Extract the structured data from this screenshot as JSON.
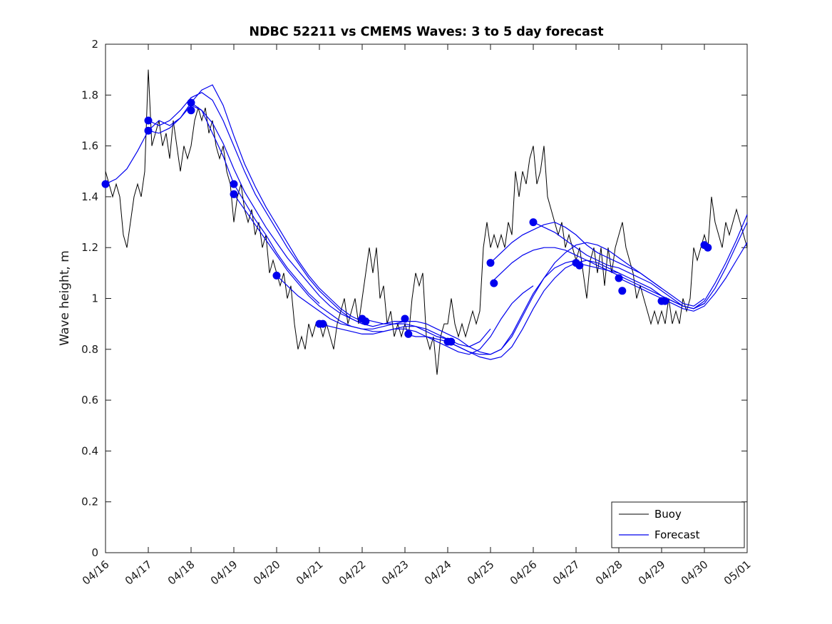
{
  "chart_data": {
    "type": "line",
    "title": "NDBC 52211 vs CMEMS Waves: 3 to 5 day forecast",
    "xlabel": "",
    "ylabel": "Wave height, m",
    "xlim": [
      0,
      15
    ],
    "ylim": [
      0,
      2
    ],
    "grid": false,
    "yticks": [
      0,
      0.2,
      0.4,
      0.6,
      0.8,
      1,
      1.2,
      1.4,
      1.6,
      1.8,
      2
    ],
    "ytick_labels": [
      "0",
      "0.2",
      "0.4",
      "0.6",
      "0.8",
      "1",
      "1.2",
      "1.4",
      "1.6",
      "1.8",
      "2"
    ],
    "xtick_labels": [
      "04/16",
      "04/17",
      "04/18",
      "04/19",
      "04/20",
      "04/21",
      "04/22",
      "04/23",
      "04/24",
      "04/25",
      "04/26",
      "04/27",
      "04/28",
      "04/29",
      "04/30",
      "05/01"
    ],
    "series_colors": {
      "buoy": "#000000",
      "forecast": "#0000ee"
    },
    "legend": {
      "position": "bottom-right",
      "entries": [
        "Buoy",
        "Forecast"
      ]
    },
    "buoy": {
      "name": "Buoy",
      "x0": 0,
      "dx": 0.0833333,
      "y": [
        1.5,
        1.45,
        1.4,
        1.45,
        1.4,
        1.25,
        1.2,
        1.3,
        1.4,
        1.45,
        1.4,
        1.5,
        1.9,
        1.6,
        1.65,
        1.7,
        1.6,
        1.65,
        1.55,
        1.7,
        1.6,
        1.5,
        1.6,
        1.55,
        1.6,
        1.7,
        1.75,
        1.7,
        1.75,
        1.65,
        1.7,
        1.6,
        1.55,
        1.6,
        1.5,
        1.45,
        1.3,
        1.4,
        1.45,
        1.35,
        1.3,
        1.35,
        1.25,
        1.3,
        1.2,
        1.25,
        1.1,
        1.15,
        1.1,
        1.05,
        1.1,
        1.0,
        1.05,
        0.9,
        0.8,
        0.85,
        0.8,
        0.9,
        0.85,
        0.9,
        0.9,
        0.85,
        0.9,
        0.85,
        0.8,
        0.9,
        0.95,
        1.0,
        0.9,
        0.95,
        1.0,
        0.9,
        1.0,
        1.1,
        1.2,
        1.1,
        1.2,
        1.0,
        1.05,
        0.9,
        0.95,
        0.85,
        0.9,
        0.85,
        0.9,
        0.85,
        1.0,
        1.1,
        1.05,
        1.1,
        0.85,
        0.8,
        0.85,
        0.7,
        0.85,
        0.9,
        0.9,
        1.0,
        0.9,
        0.85,
        0.9,
        0.85,
        0.9,
        0.95,
        0.9,
        0.95,
        1.2,
        1.3,
        1.2,
        1.25,
        1.2,
        1.25,
        1.2,
        1.3,
        1.25,
        1.5,
        1.4,
        1.5,
        1.45,
        1.55,
        1.6,
        1.45,
        1.5,
        1.6,
        1.4,
        1.35,
        1.3,
        1.25,
        1.3,
        1.2,
        1.25,
        1.2,
        1.15,
        1.2,
        1.1,
        1.0,
        1.15,
        1.2,
        1.1,
        1.2,
        1.05,
        1.2,
        1.1,
        1.2,
        1.25,
        1.3,
        1.2,
        1.15,
        1.1,
        1.0,
        1.05,
        1.0,
        0.95,
        0.9,
        0.95,
        0.9,
        0.95,
        0.9,
        1.0,
        0.9,
        0.95,
        0.9,
        1.0,
        0.95,
        1.0,
        1.2,
        1.15,
        1.2,
        1.25,
        1.2,
        1.4,
        1.3,
        1.25,
        1.2,
        1.3,
        1.25,
        1.3,
        1.35,
        1.3,
        1.25,
        1.2
      ]
    },
    "forecast": {
      "name": "Forecast",
      "segments": [
        {
          "x0": 0,
          "dx": 0.25,
          "y": [
            1.45,
            1.47,
            1.51,
            1.58,
            1.66,
            1.7,
            1.68,
            1.71,
            1.76,
            1.74,
            1.65,
            1.56,
            1.45,
            1.38,
            1.31,
            1.25,
            1.18,
            1.12,
            1.07,
            1.02,
            0.98
          ]
        },
        {
          "x0": 1,
          "dx": 0.25,
          "y": [
            1.66,
            1.65,
            1.67,
            1.71,
            1.77,
            1.82,
            1.84,
            1.76,
            1.64,
            1.53,
            1.44,
            1.36,
            1.29,
            1.22,
            1.15,
            1.09,
            1.04,
            1.0,
            0.96,
            0.93,
            0.91
          ]
        },
        {
          "x0": 1,
          "dx": 0.25,
          "y": [
            1.7,
            1.68,
            1.7,
            1.74,
            1.79,
            1.81,
            1.78,
            1.7,
            1.6,
            1.5,
            1.41,
            1.34,
            1.27,
            1.2,
            1.14,
            1.08,
            1.03,
            0.99,
            0.95,
            0.92,
            0.9
          ]
        },
        {
          "x0": 2,
          "dx": 0.25,
          "y": [
            1.77,
            1.74,
            1.69,
            1.61,
            1.51,
            1.42,
            1.35,
            1.28,
            1.22,
            1.16,
            1.11,
            1.06,
            1.01,
            0.97,
            0.94,
            0.92,
            0.9,
            0.89,
            0.9,
            0.91,
            0.91
          ]
        },
        {
          "x0": 3,
          "dx": 0.25,
          "y": [
            1.41,
            1.35,
            1.29,
            1.23,
            1.17,
            1.11,
            1.06,
            1.01,
            0.97,
            0.94,
            0.91,
            0.89,
            0.88,
            0.88,
            0.89,
            0.9,
            0.9,
            0.89,
            0.87,
            0.85,
            0.84
          ]
        },
        {
          "x0": 4,
          "dx": 0.25,
          "y": [
            1.09,
            1.05,
            1.01,
            0.98,
            0.95,
            0.92,
            0.9,
            0.89,
            0.88,
            0.87,
            0.87,
            0.88,
            0.89,
            0.89,
            0.88,
            0.86,
            0.84,
            0.82,
            0.81,
            0.83,
            0.88
          ]
        },
        {
          "x0": 5,
          "dx": 0.25,
          "y": [
            0.9,
            0.89,
            0.88,
            0.87,
            0.86,
            0.86,
            0.87,
            0.88,
            0.88,
            0.87,
            0.85,
            0.83,
            0.81,
            0.79,
            0.78,
            0.8,
            0.85,
            0.92,
            0.98,
            1.02,
            1.05
          ]
        },
        {
          "x0": 6,
          "dx": 0.25,
          "y": [
            0.92,
            0.91,
            0.9,
            0.9,
            0.91,
            0.91,
            0.9,
            0.88,
            0.86,
            0.84,
            0.81,
            0.79,
            0.78,
            0.8,
            0.86,
            0.94,
            1.02,
            1.08,
            1.12,
            1.14,
            1.15
          ]
        },
        {
          "x0": 7,
          "dx": 0.25,
          "y": [
            0.86,
            0.85,
            0.85,
            0.84,
            0.83,
            0.81,
            0.79,
            0.77,
            0.76,
            0.77,
            0.81,
            0.88,
            0.96,
            1.03,
            1.08,
            1.12,
            1.14,
            1.15,
            1.14,
            1.12,
            1.1
          ]
        },
        {
          "x0": 8,
          "dx": 0.25,
          "y": [
            0.83,
            0.81,
            0.79,
            0.78,
            0.78,
            0.8,
            0.85,
            0.93,
            1.01,
            1.08,
            1.14,
            1.18,
            1.21,
            1.22,
            1.21,
            1.19,
            1.16,
            1.13,
            1.1,
            1.07,
            1.04
          ]
        },
        {
          "x0": 9,
          "dx": 0.25,
          "y": [
            1.14,
            1.18,
            1.22,
            1.25,
            1.27,
            1.29,
            1.3,
            1.28,
            1.25,
            1.21,
            1.18,
            1.16,
            1.14,
            1.12,
            1.1,
            1.07,
            1.04,
            1.01,
            0.98,
            0.97,
            1.0
          ]
        },
        {
          "x0": 9,
          "dx": 0.25,
          "y": [
            1.06,
            1.1,
            1.14,
            1.17,
            1.19,
            1.2,
            1.2,
            1.19,
            1.17,
            1.15,
            1.13,
            1.11,
            1.09,
            1.07,
            1.05,
            1.03,
            1.01,
            0.99,
            0.97,
            0.96,
            0.98
          ]
        },
        {
          "x0": 10,
          "dx": 0.25,
          "y": [
            1.3,
            1.28,
            1.26,
            1.23,
            1.2,
            1.17,
            1.15,
            1.13,
            1.12,
            1.1,
            1.08,
            1.06,
            1.03,
            1.0,
            0.97,
            0.96,
            0.98,
            1.04,
            1.12,
            1.21,
            1.3
          ]
        },
        {
          "x0": 11,
          "dx": 0.25,
          "y": [
            1.14,
            1.13,
            1.12,
            1.11,
            1.1,
            1.08,
            1.06,
            1.04,
            1.01,
            0.99,
            0.97,
            0.96,
            0.99,
            1.06,
            1.14,
            1.23,
            1.33
          ]
        },
        {
          "x0": 12,
          "dx": 0.25,
          "y": [
            1.08,
            1.06,
            1.04,
            1.02,
            1.0,
            0.98,
            0.96,
            0.95,
            0.97,
            1.02,
            1.08,
            1.15,
            1.22
          ]
        }
      ],
      "markers": [
        [
          0,
          1.45
        ],
        [
          1,
          1.7
        ],
        [
          1,
          1.66
        ],
        [
          2,
          1.77
        ],
        [
          2,
          1.74
        ],
        [
          3,
          1.45
        ],
        [
          3,
          1.41
        ],
        [
          4,
          1.09
        ],
        [
          5,
          0.9
        ],
        [
          5.08,
          0.9
        ],
        [
          6,
          0.92
        ],
        [
          6.08,
          0.91
        ],
        [
          7,
          0.92
        ],
        [
          7.08,
          0.86
        ],
        [
          8,
          0.83
        ],
        [
          8.08,
          0.83
        ],
        [
          9,
          1.14
        ],
        [
          9.08,
          1.06
        ],
        [
          10,
          1.3
        ],
        [
          11,
          1.14
        ],
        [
          11.08,
          1.13
        ],
        [
          12,
          1.08
        ],
        [
          12.08,
          1.03
        ],
        [
          13,
          0.99
        ],
        [
          13.08,
          0.99
        ],
        [
          14,
          1.21
        ],
        [
          14.08,
          1.2
        ]
      ]
    }
  }
}
